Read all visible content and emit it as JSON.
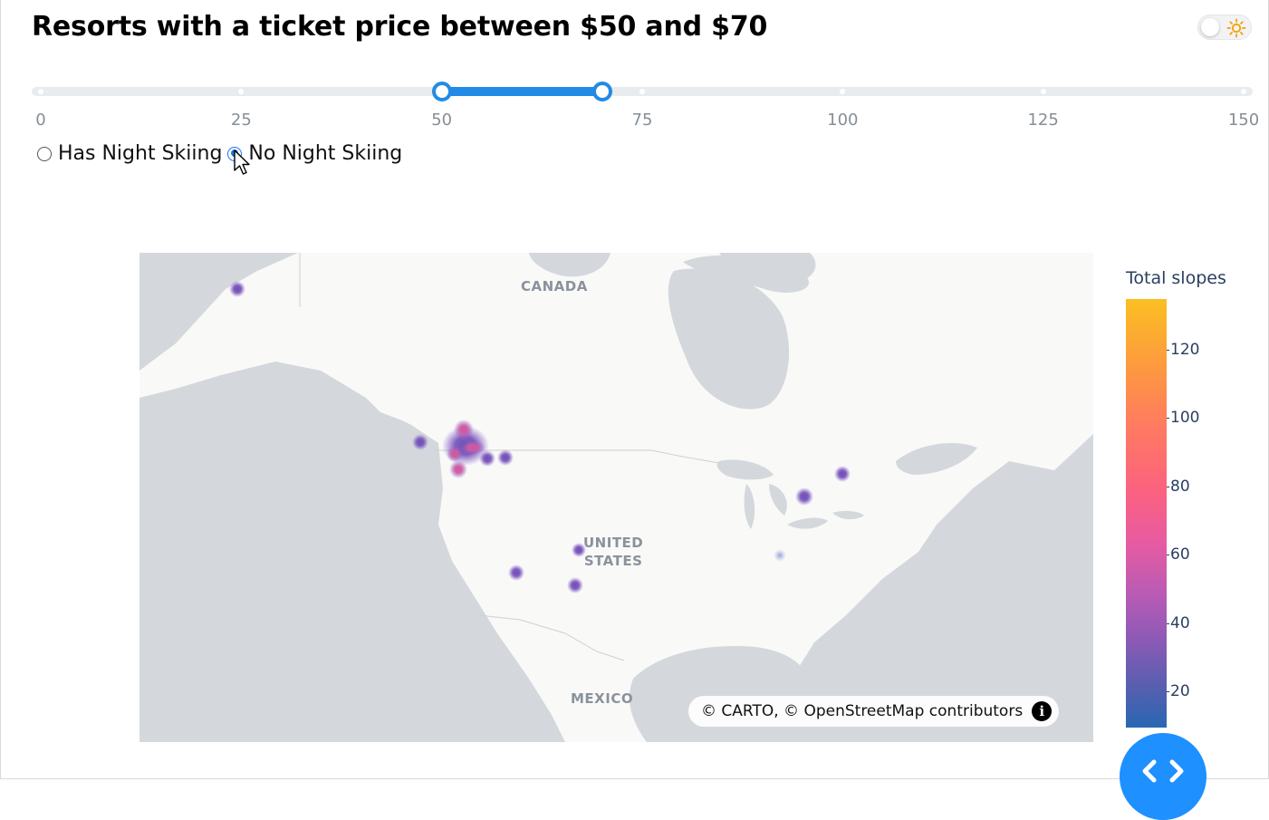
{
  "title": "Resorts with a ticket price between $50 and $70",
  "theme_toggle": {
    "icon": "sun-icon",
    "accent": "#f59f00"
  },
  "slider": {
    "min": 0,
    "max": 150,
    "value_low": 50,
    "value_high": 70,
    "marks": [
      "0",
      "25",
      "50",
      "75",
      "100",
      "125",
      "150"
    ],
    "accent": "#228be6"
  },
  "night_skiing": {
    "options": [
      "Has Night Skiing",
      "No Night Skiing"
    ],
    "selected": "No Night Skiing"
  },
  "map": {
    "labels": {
      "canada": "CANADA",
      "united_states": "UNITED\nSTATES",
      "mexico": "MEXICO"
    },
    "attribution": "© CARTO, © OpenStreetMap contributors",
    "info_icon": "info-icon"
  },
  "colorbar": {
    "title": "Total slopes",
    "ticks": [
      "120",
      "100",
      "80",
      "60",
      "40",
      "20"
    ],
    "low_color": "#2867b2",
    "high_color": "#fbbf22"
  },
  "fab": {
    "icon": "code-brackets-icon",
    "color": "#1e90ff"
  }
}
